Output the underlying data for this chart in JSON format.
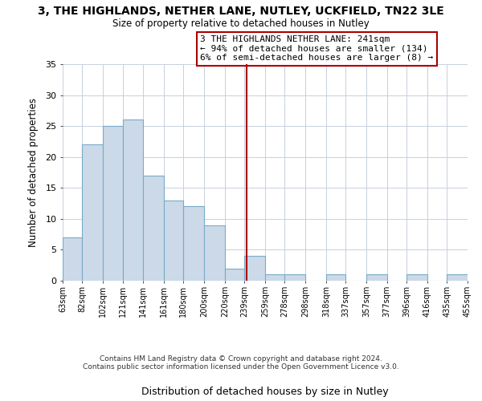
{
  "title": "3, THE HIGHLANDS, NETHER LANE, NUTLEY, UCKFIELD, TN22 3LE",
  "subtitle": "Size of property relative to detached houses in Nutley",
  "xlabel": "Distribution of detached houses by size in Nutley",
  "ylabel": "Number of detached properties",
  "bar_color": "#ccd9e8",
  "bar_edgecolor": "#7aaac8",
  "background_color": "#ffffff",
  "grid_color": "#c8d0dc",
  "bins": [
    63,
    82,
    102,
    121,
    141,
    161,
    180,
    200,
    220,
    239,
    259,
    278,
    298,
    318,
    337,
    357,
    377,
    396,
    416,
    435,
    455
  ],
  "counts": [
    7,
    22,
    25,
    26,
    17,
    13,
    12,
    9,
    2,
    4,
    1,
    1,
    0,
    1,
    0,
    1,
    0,
    1,
    0,
    1
  ],
  "vline_x": 241,
  "vline_color": "#aa0000",
  "annotation_lines": [
    "3 THE HIGHLANDS NETHER LANE: 241sqm",
    "← 94% of detached houses are smaller (134)",
    "6% of semi-detached houses are larger (8) →"
  ],
  "ylim": [
    0,
    35
  ],
  "yticks": [
    0,
    5,
    10,
    15,
    20,
    25,
    30,
    35
  ],
  "tick_labels": [
    "63sqm",
    "82sqm",
    "102sqm",
    "121sqm",
    "141sqm",
    "161sqm",
    "180sqm",
    "200sqm",
    "220sqm",
    "239sqm",
    "259sqm",
    "278sqm",
    "298sqm",
    "318sqm",
    "337sqm",
    "357sqm",
    "377sqm",
    "396sqm",
    "416sqm",
    "435sqm",
    "455sqm"
  ],
  "footer_line1": "Contains HM Land Registry data © Crown copyright and database right 2024.",
  "footer_line2": "Contains public sector information licensed under the Open Government Licence v3.0."
}
